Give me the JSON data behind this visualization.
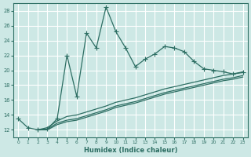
{
  "xlabel": "Humidex (Indice chaleur)",
  "bg_color": "#cde8e5",
  "line_color": "#2d6e63",
  "grid_color": "#ffffff",
  "xlim": [
    -0.5,
    23.5
  ],
  "ylim": [
    11,
    29
  ],
  "yticks": [
    12,
    14,
    16,
    18,
    20,
    22,
    24,
    26,
    28
  ],
  "xticks": [
    0,
    1,
    2,
    3,
    4,
    5,
    6,
    7,
    8,
    9,
    10,
    11,
    12,
    13,
    14,
    15,
    16,
    17,
    18,
    19,
    20,
    21,
    22,
    23
  ],
  "main_line_x": [
    0,
    1,
    2,
    3,
    4,
    5,
    6,
    7,
    8,
    9,
    10,
    11,
    12,
    13,
    14,
    15,
    16,
    17,
    18,
    19,
    20,
    21,
    22,
    23
  ],
  "main_line_y": [
    13.5,
    12.3,
    12.0,
    12.1,
    13.5,
    22.0,
    16.5,
    25.0,
    23.0,
    28.5,
    25.2,
    23.0,
    20.5,
    21.5,
    22.2,
    23.2,
    23.0,
    22.5,
    21.2,
    20.2,
    20.0,
    19.8,
    19.5,
    19.7
  ],
  "line2_x": [
    2,
    3,
    4,
    5,
    6,
    7,
    8,
    9,
    10,
    11,
    12,
    13,
    14,
    15,
    16,
    17,
    18,
    19,
    20,
    21,
    22,
    23
  ],
  "line2_y": [
    12.0,
    12.3,
    13.2,
    13.8,
    14.0,
    14.4,
    14.8,
    15.2,
    15.7,
    16.0,
    16.3,
    16.7,
    17.1,
    17.5,
    17.8,
    18.1,
    18.4,
    18.7,
    19.0,
    19.3,
    19.5,
    19.8
  ],
  "line3_x": [
    2,
    3,
    4,
    5,
    6,
    7,
    8,
    9,
    10,
    11,
    12,
    13,
    14,
    15,
    16,
    17,
    18,
    19,
    20,
    21,
    22,
    23
  ],
  "line3_y": [
    12.0,
    12.1,
    12.9,
    13.3,
    13.5,
    13.9,
    14.3,
    14.7,
    15.2,
    15.5,
    15.8,
    16.2,
    16.6,
    17.0,
    17.3,
    17.6,
    17.9,
    18.2,
    18.5,
    18.8,
    19.0,
    19.3
  ],
  "line4_x": [
    2,
    3,
    4,
    5,
    6,
    7,
    8,
    9,
    10,
    11,
    12,
    13,
    14,
    15,
    16,
    17,
    18,
    19,
    20,
    21,
    22,
    23
  ],
  "line4_y": [
    12.0,
    12.0,
    12.7,
    13.1,
    13.3,
    13.7,
    14.1,
    14.5,
    15.0,
    15.3,
    15.6,
    16.0,
    16.4,
    16.8,
    17.1,
    17.4,
    17.7,
    18.0,
    18.3,
    18.6,
    18.8,
    19.1
  ]
}
